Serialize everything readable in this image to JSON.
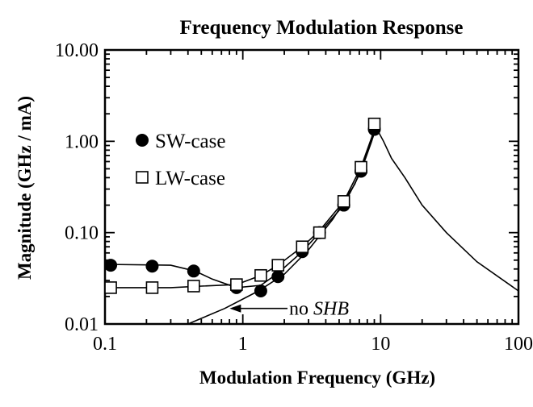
{
  "chart_data": {
    "type": "line",
    "title": "Frequency Modulation Response",
    "xlabel": "Modulation Frequency (GHz)",
    "ylabel": "Magnitude (GHz / mA)",
    "xscale": "log",
    "yscale": "log",
    "xlim": [
      0.1,
      100
    ],
    "ylim": [
      0.01,
      10
    ],
    "xticks": [
      {
        "value": 0.1,
        "label": "0.1"
      },
      {
        "value": 1,
        "label": "1"
      },
      {
        "value": 10,
        "label": "10"
      },
      {
        "value": 100,
        "label": "100"
      }
    ],
    "yticks": [
      {
        "value": 0.01,
        "label": "0.01"
      },
      {
        "value": 0.1,
        "label": "0.10"
      },
      {
        "value": 1,
        "label": "1.00"
      },
      {
        "value": 10,
        "label": "10.00"
      }
    ],
    "grid": false,
    "legend": {
      "placement": "left",
      "entries": [
        {
          "label": "SW-case",
          "marker": "filled-circle"
        },
        {
          "label": "LW-case",
          "marker": "open-square"
        }
      ]
    },
    "annotations": [
      {
        "text": "no SHB",
        "arrow_to": [
          0.74,
          0.0148
        ]
      }
    ],
    "series": [
      {
        "name": "SW-case",
        "marker": "filled-circle",
        "points": [
          {
            "x": 0.11,
            "y": 0.044
          },
          {
            "x": 0.22,
            "y": 0.043
          },
          {
            "x": 0.44,
            "y": 0.038
          },
          {
            "x": 0.9,
            "y": 0.025
          },
          {
            "x": 1.35,
            "y": 0.023
          },
          {
            "x": 1.8,
            "y": 0.033
          },
          {
            "x": 2.7,
            "y": 0.062
          },
          {
            "x": 3.6,
            "y": 0.1
          },
          {
            "x": 5.4,
            "y": 0.2
          },
          {
            "x": 7.2,
            "y": 0.47
          },
          {
            "x": 9.0,
            "y": 1.35
          }
        ],
        "curve": [
          {
            "x": 0.1,
            "y": 0.045
          },
          {
            "x": 0.3,
            "y": 0.044
          },
          {
            "x": 0.45,
            "y": 0.038
          },
          {
            "x": 0.6,
            "y": 0.031
          },
          {
            "x": 0.9,
            "y": 0.025
          },
          {
            "x": 1.35,
            "y": 0.0265
          },
          {
            "x": 1.8,
            "y": 0.036
          },
          {
            "x": 2.7,
            "y": 0.062
          },
          {
            "x": 3.6,
            "y": 0.1
          },
          {
            "x": 5.4,
            "y": 0.2
          },
          {
            "x": 7.2,
            "y": 0.47
          },
          {
            "x": 8.6,
            "y": 1.0
          },
          {
            "x": 9.2,
            "y": 1.45
          }
        ]
      },
      {
        "name": "LW-case",
        "marker": "open-square",
        "points": [
          {
            "x": 0.11,
            "y": 0.025
          },
          {
            "x": 0.22,
            "y": 0.025
          },
          {
            "x": 0.44,
            "y": 0.026
          },
          {
            "x": 0.9,
            "y": 0.027
          },
          {
            "x": 1.35,
            "y": 0.034
          },
          {
            "x": 1.8,
            "y": 0.044
          },
          {
            "x": 2.7,
            "y": 0.07
          },
          {
            "x": 3.6,
            "y": 0.1
          },
          {
            "x": 5.4,
            "y": 0.22
          },
          {
            "x": 7.2,
            "y": 0.52
          },
          {
            "x": 9.0,
            "y": 1.55
          }
        ],
        "curve": [
          {
            "x": 0.1,
            "y": 0.025
          },
          {
            "x": 0.3,
            "y": 0.025
          },
          {
            "x": 0.5,
            "y": 0.026
          },
          {
            "x": 0.9,
            "y": 0.027
          },
          {
            "x": 1.35,
            "y": 0.034
          },
          {
            "x": 1.8,
            "y": 0.044
          },
          {
            "x": 2.7,
            "y": 0.07
          },
          {
            "x": 3.6,
            "y": 0.105
          },
          {
            "x": 5.4,
            "y": 0.22
          },
          {
            "x": 7.2,
            "y": 0.52
          },
          {
            "x": 8.6,
            "y": 1.1
          },
          {
            "x": 9.2,
            "y": 1.55
          }
        ]
      },
      {
        "curve": [
          {
            "x": 0.4,
            "y": 0.01
          },
          {
            "x": 0.74,
            "y": 0.0148
          },
          {
            "x": 1.3,
            "y": 0.023
          },
          {
            "x": 2.0,
            "y": 0.035
          },
          {
            "x": 3.0,
            "y": 0.065
          },
          {
            "x": 4.5,
            "y": 0.14
          },
          {
            "x": 6.5,
            "y": 0.34
          },
          {
            "x": 8.0,
            "y": 0.75
          },
          {
            "x": 9.3,
            "y": 1.4
          },
          {
            "x": 10.5,
            "y": 1.0
          },
          {
            "x": 12,
            "y": 0.65
          },
          {
            "x": 15,
            "y": 0.4
          },
          {
            "x": 20,
            "y": 0.2
          },
          {
            "x": 30,
            "y": 0.1
          },
          {
            "x": 50,
            "y": 0.048
          },
          {
            "x": 100,
            "y": 0.023
          }
        ]
      }
    ]
  }
}
